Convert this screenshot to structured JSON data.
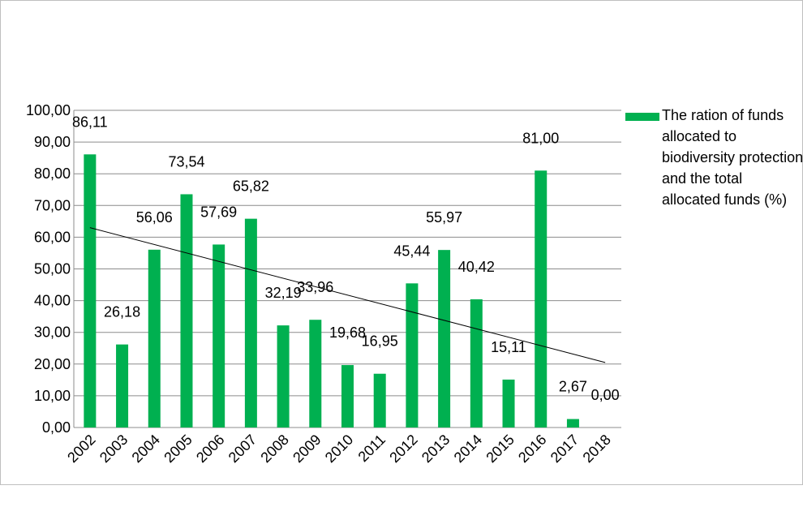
{
  "chart_data": {
    "type": "bar",
    "title": "",
    "xlabel": "",
    "ylabel": "",
    "categories": [
      "2002",
      "2003",
      "2004",
      "2005",
      "2006",
      "2007",
      "2008",
      "2009",
      "2010",
      "2011",
      "2012",
      "2013",
      "2014",
      "2015",
      "2016",
      "2017",
      "2018"
    ],
    "series": [
      {
        "name": "The ration of funds allocated to biodiversity protection and the total allocated funds (%)",
        "values": [
          86.11,
          26.18,
          56.06,
          73.54,
          57.69,
          65.82,
          32.19,
          33.96,
          19.68,
          16.95,
          45.44,
          55.97,
          40.42,
          15.11,
          81.0,
          2.67,
          0.0
        ],
        "labels": [
          "86,11",
          "26,18",
          "56,06",
          "73,54",
          "57,69",
          "65,82",
          "32,19",
          "33,96",
          "19,68",
          "16,95",
          "45,44",
          "55,97",
          "40,42",
          "15,11",
          "81,00",
          "2,67",
          "0,00"
        ],
        "color": "#00b050"
      }
    ],
    "trendline": {
      "type": "linear",
      "color": "#000000",
      "start_value": 63.0,
      "end_value": 20.5
    },
    "ylim": [
      0,
      100
    ],
    "y_ticks": [
      "0,00",
      "10,00",
      "20,00",
      "30,00",
      "40,00",
      "50,00",
      "60,00",
      "70,00",
      "80,00",
      "90,00",
      "100,00"
    ],
    "grid": "horizontal",
    "legend_position": "right",
    "x_tick_rotation": "-45deg"
  }
}
